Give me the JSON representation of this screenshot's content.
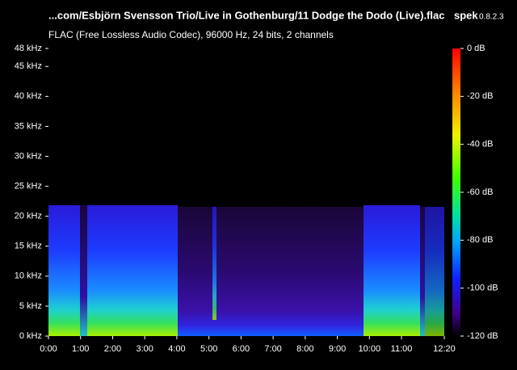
{
  "chart_data": {
    "type": "spectrogram",
    "title": "...com/Esbjörn Svensson Trio/Live in Gothenburg/11 Dodge the Dodo (Live).flac",
    "app_name": "spek",
    "app_version": "0.8.2.3",
    "subtitle": "FLAC (Free Lossless Audio Codec), 96000 Hz, 24 bits, 2 channels",
    "xlim": [
      0,
      740
    ],
    "xticks": [
      {
        "value": 0,
        "label": "0:00"
      },
      {
        "value": 60,
        "label": "1:00"
      },
      {
        "value": 120,
        "label": "2:00"
      },
      {
        "value": 180,
        "label": "3:00"
      },
      {
        "value": 240,
        "label": "4:00"
      },
      {
        "value": 300,
        "label": "5:00"
      },
      {
        "value": 360,
        "label": "6:00"
      },
      {
        "value": 420,
        "label": "7:00"
      },
      {
        "value": 480,
        "label": "8:00"
      },
      {
        "value": 540,
        "label": "9:00"
      },
      {
        "value": 600,
        "label": "10:00"
      },
      {
        "value": 660,
        "label": "11:00"
      },
      {
        "value": 740,
        "label": "12:20"
      }
    ],
    "ylim": [
      0,
      48
    ],
    "yticks": [
      {
        "value": 0,
        "label": "0 kHz"
      },
      {
        "value": 5,
        "label": "5 kHz"
      },
      {
        "value": 10,
        "label": "10 kHz"
      },
      {
        "value": 15,
        "label": "15 kHz"
      },
      {
        "value": 20,
        "label": "20 kHz"
      },
      {
        "value": 25,
        "label": "25 kHz"
      },
      {
        "value": 30,
        "label": "30 kHz"
      },
      {
        "value": 35,
        "label": "35 kHz"
      },
      {
        "value": 40,
        "label": "40 kHz"
      },
      {
        "value": 45,
        "label": "45 kHz"
      },
      {
        "value": 48,
        "label": "48 kHz"
      }
    ],
    "colorbar_lim": [
      -120,
      0
    ],
    "colorbar_ticks": [
      {
        "value": 0,
        "label": "0 dB"
      },
      {
        "value": -20,
        "label": "-20 dB"
      },
      {
        "value": -40,
        "label": "-40 dB"
      },
      {
        "value": -60,
        "label": "-60 dB"
      },
      {
        "value": -80,
        "label": "-80 dB"
      },
      {
        "value": -100,
        "label": "-100 dB"
      },
      {
        "value": -120,
        "label": "-120 dB"
      }
    ]
  }
}
